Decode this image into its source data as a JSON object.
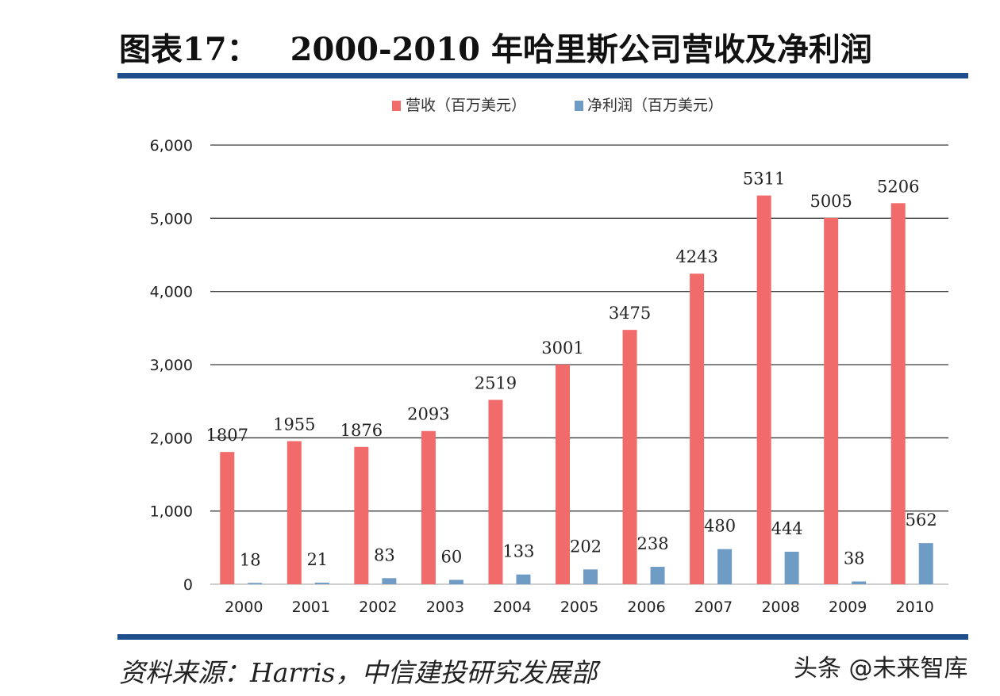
{
  "header": {
    "label": "图表17：",
    "title": "2000-2010 年哈里斯公司营收及净利润"
  },
  "footer": {
    "source": "资料来源：Harris，中信建投研究发展部",
    "watermark": "头条 @未来智库"
  },
  "chart_data": {
    "type": "bar",
    "categories": [
      "2000",
      "2001",
      "2002",
      "2003",
      "2004",
      "2005",
      "2006",
      "2007",
      "2008",
      "2009",
      "2010"
    ],
    "series": [
      {
        "name": "营收（百万美元）",
        "color": "#f26b6b",
        "values": [
          1807,
          1955,
          1876,
          2093,
          2519,
          3001,
          3475,
          4243,
          5311,
          5005,
          5206
        ]
      },
      {
        "name": "净利润（百万美元）",
        "color": "#6f9cc4",
        "values": [
          18,
          21,
          83,
          60,
          133,
          202,
          238,
          480,
          444,
          38,
          562
        ]
      }
    ],
    "ylim": [
      0,
      6000
    ],
    "yticks": [
      "0",
      "1,000",
      "2,000",
      "3,000",
      "4,000",
      "5,000",
      "6,000"
    ],
    "grid": true,
    "legend": "top-center"
  }
}
